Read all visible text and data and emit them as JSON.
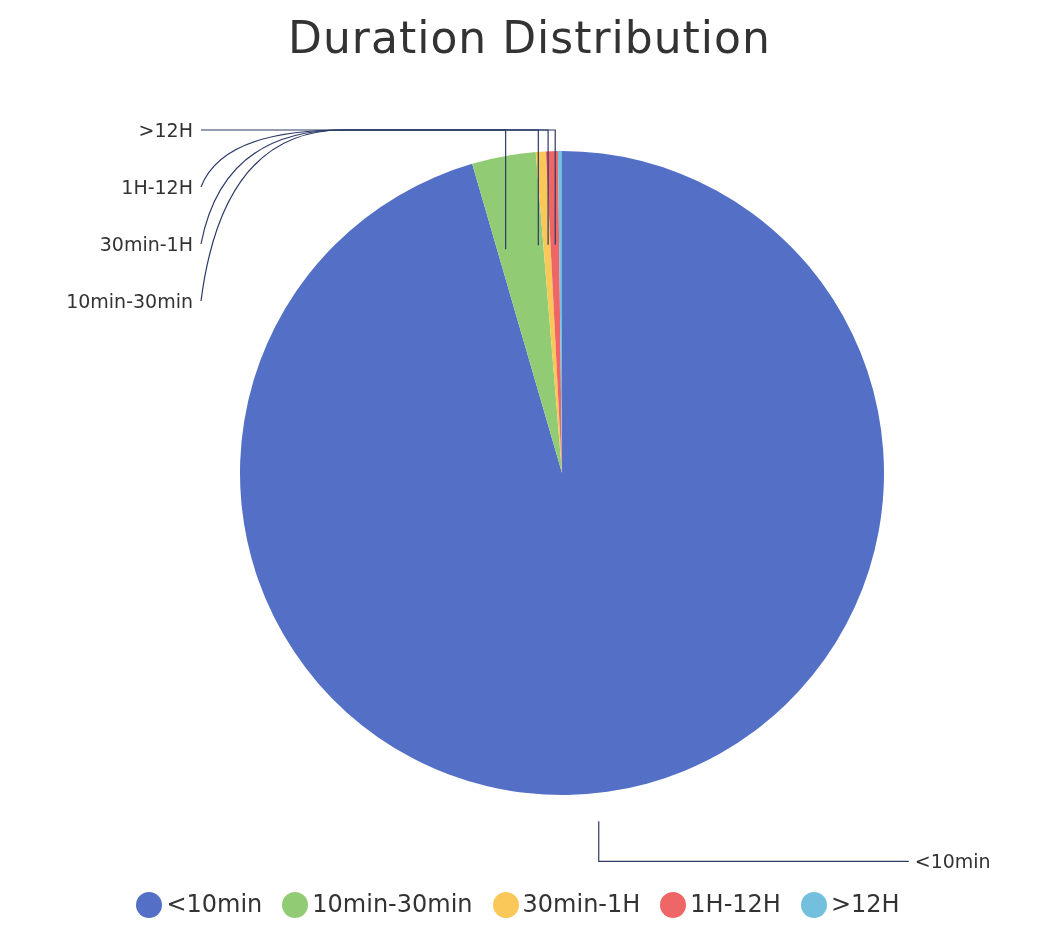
{
  "chart_data": {
    "type": "pie",
    "title": "Duration Distribution",
    "categories": [
      "<10min",
      "10min-30min",
      "30min-1H",
      "1H-12H",
      ">12H"
    ],
    "values": [
      95.5,
      3.2,
      0.5,
      0.6,
      0.2
    ],
    "colors": [
      "#5470c6",
      "#91cc75",
      "#fac858",
      "#ee6666",
      "#73c0de"
    ],
    "legend": "bottom"
  }
}
